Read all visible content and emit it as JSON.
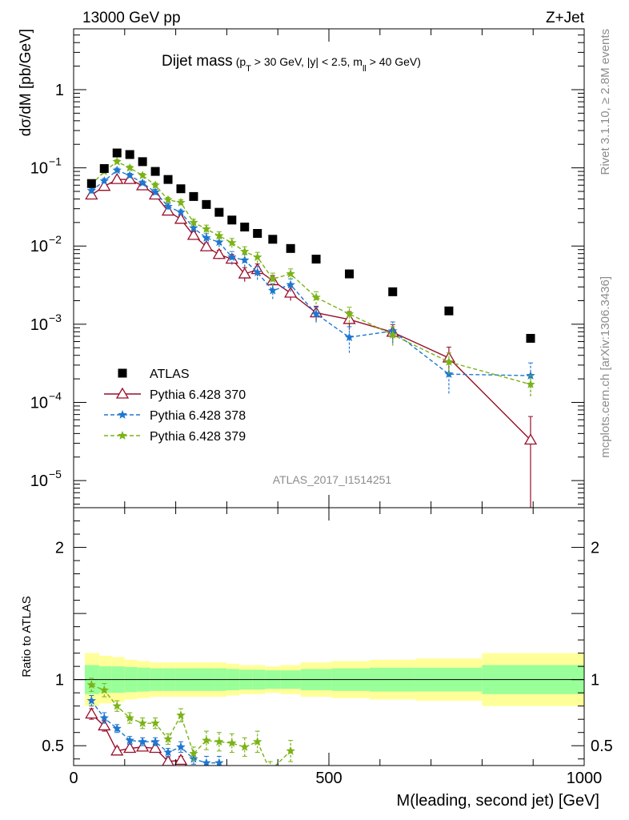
{
  "header": {
    "left": "13000 GeV pp",
    "right": "Z+Jet"
  },
  "side_labels": {
    "rivet": "Rivet 3.1.10, ≥ 2.8M events",
    "mcplots": "mcplots.cern.ch [arXiv:1306.3436]"
  },
  "chart_data": [
    {
      "type": "scatter",
      "title_main": "Dijet mass",
      "title_cuts": [
        "(p",
        "T",
        " > 30 GeV, |y| < 2.5, m",
        "ll",
        " > 40 GeV)"
      ],
      "ylabel": "dσ/dM [pb/GeV]",
      "yscale": "log",
      "ylim": [
        4.5e-06,
        6
      ],
      "xlim": [
        0,
        1000
      ],
      "y_ticks": [
        {
          "v": 1,
          "label": "1"
        },
        {
          "v": 0.1,
          "base": "10",
          "exp": "−1"
        },
        {
          "v": 0.01,
          "base": "10",
          "exp": "−2"
        },
        {
          "v": 0.001,
          "base": "10",
          "exp": "−3"
        },
        {
          "v": 0.0001,
          "base": "10",
          "exp": "−4"
        },
        {
          "v": 1e-05,
          "base": "10",
          "exp": "−5"
        }
      ],
      "analysis_label": "ATLAS_2017_I1514251",
      "legend_position": "bottom-left",
      "series": [
        {
          "name": "ATLAS",
          "color": "#000000",
          "marker": "square",
          "x": [
            35,
            60,
            85,
            110,
            135,
            160,
            185,
            210,
            235,
            260,
            285,
            310,
            335,
            360,
            390,
            425,
            475,
            540,
            625,
            735,
            895
          ],
          "y": [
            0.063,
            0.098,
            0.155,
            0.148,
            0.12,
            0.09,
            0.071,
            0.054,
            0.043,
            0.034,
            0.027,
            0.0215,
            0.0175,
            0.0145,
            0.0122,
            0.0093,
            0.0068,
            0.0044,
            0.0026,
            0.00148,
            0.00066
          ]
        },
        {
          "name": "Pythia 6.428 370",
          "color": "#9a0e2a",
          "marker": "triangle-open",
          "line": "solid",
          "x": [
            35,
            60,
            85,
            110,
            135,
            160,
            185,
            210,
            235,
            260,
            285,
            310,
            335,
            360,
            390,
            425,
            475,
            540,
            625,
            735,
            895
          ],
          "y": [
            0.045,
            0.058,
            0.071,
            0.071,
            0.059,
            0.045,
            0.028,
            0.022,
            0.0137,
            0.0098,
            0.0078,
            0.0068,
            0.0044,
            0.005,
            0.0036,
            0.0025,
            0.0014,
            0.00115,
            0.00079,
            0.00037,
            3.3e-05
          ],
          "yerr": [
            0.004,
            0.004,
            0.005,
            0.005,
            0.004,
            0.003,
            0.002,
            0.002,
            0.0015,
            0.0012,
            0.001,
            0.001,
            0.0009,
            0.0009,
            0.0006,
            0.0005,
            0.0003,
            0.0003,
            0.0002,
            0.00014,
            3.3e-05
          ]
        },
        {
          "name": "Pythia 6.428 378",
          "color": "#1f77d0",
          "marker": "star",
          "line": "dashed",
          "x": [
            35,
            60,
            85,
            110,
            135,
            160,
            185,
            210,
            235,
            260,
            285,
            310,
            335,
            360,
            390,
            425,
            475,
            540,
            625,
            735,
            895
          ],
          "y": [
            0.051,
            0.068,
            0.093,
            0.08,
            0.064,
            0.049,
            0.032,
            0.027,
            0.017,
            0.0127,
            0.0112,
            0.0072,
            0.0066,
            0.0046,
            0.0027,
            0.0032,
            0.00135,
            0.00068,
            0.00082,
            0.00023,
            0.00022
          ],
          "yerr": [
            0.004,
            0.005,
            0.006,
            0.005,
            0.004,
            0.004,
            0.003,
            0.002,
            0.002,
            0.0017,
            0.0015,
            0.0013,
            0.0012,
            0.0009,
            0.0006,
            0.0006,
            0.0003,
            0.00025,
            0.00025,
            0.0001,
            0.0001
          ]
        },
        {
          "name": "Pythia 6.428 379",
          "color": "#7ab317",
          "marker": "star",
          "line": "dashed",
          "x": [
            35,
            60,
            85,
            110,
            135,
            160,
            185,
            210,
            235,
            260,
            285,
            310,
            335,
            360,
            390,
            425,
            475,
            540,
            625,
            735,
            895
          ],
          "y": [
            0.061,
            0.09,
            0.12,
            0.1,
            0.08,
            0.06,
            0.039,
            0.036,
            0.02,
            0.0165,
            0.0135,
            0.011,
            0.0085,
            0.0072,
            0.0038,
            0.0044,
            0.0022,
            0.00135,
            0.00073,
            0.00033,
            0.00017
          ],
          "yerr": [
            0.005,
            0.006,
            0.007,
            0.006,
            0.005,
            0.004,
            0.003,
            0.003,
            0.002,
            0.002,
            0.0017,
            0.0015,
            0.0013,
            0.0011,
            0.0007,
            0.0007,
            0.0004,
            0.0003,
            0.0002,
            0.0001,
            5e-05
          ]
        }
      ]
    },
    {
      "type": "scatter",
      "ylabel": "Ratio to ATLAS",
      "xlabel": "M(leading, second jet) [GeV]",
      "xlim": [
        0,
        1000
      ],
      "ylim": [
        0.35,
        2.3
      ],
      "x_ticks": [
        {
          "v": 0,
          "label": "0"
        },
        {
          "v": 500,
          "label": "500"
        },
        {
          "v": 1000,
          "label": "1000"
        }
      ],
      "y_ticks": [
        {
          "v": 0.5,
          "label": "0.5"
        },
        {
          "v": 1,
          "label": "1"
        },
        {
          "v": 2,
          "label": "2"
        }
      ],
      "reference_line": 1,
      "uncertainty_bands": {
        "inner_color": "#99ff99",
        "outer_color": "#ffff99",
        "edges": [
          22,
          50,
          75,
          100,
          125,
          150,
          175,
          200,
          225,
          250,
          275,
          300,
          325,
          350,
          375,
          405,
          445,
          505,
          580,
          670,
          800,
          1000
        ],
        "inner_half_width": [
          0.11,
          0.1,
          0.1,
          0.095,
          0.09,
          0.085,
          0.085,
          0.085,
          0.085,
          0.085,
          0.085,
          0.08,
          0.075,
          0.075,
          0.07,
          0.07,
          0.08,
          0.085,
          0.09,
          0.09,
          0.11
        ],
        "outer_half_width": [
          0.2,
          0.18,
          0.17,
          0.15,
          0.14,
          0.13,
          0.13,
          0.13,
          0.13,
          0.13,
          0.13,
          0.12,
          0.11,
          0.11,
          0.1,
          0.11,
          0.13,
          0.14,
          0.15,
          0.16,
          0.2
        ]
      },
      "series": [
        {
          "name": "Pythia 6.428 370",
          "x": [
            35,
            60,
            85,
            110,
            135,
            160,
            185,
            210,
            235
          ],
          "y": [
            0.74,
            0.65,
            0.46,
            0.48,
            0.49,
            0.48,
            0.38,
            0.39,
            0.3
          ],
          "yerr": [
            0.04,
            0.04,
            0.03,
            0.03,
            0.03,
            0.03,
            0.03,
            0.03,
            0.03
          ]
        },
        {
          "name": "Pythia 6.428 378",
          "x": [
            35,
            60,
            85,
            110,
            135,
            160,
            185,
            210,
            235,
            260,
            285
          ],
          "y": [
            0.84,
            0.71,
            0.63,
            0.54,
            0.53,
            0.53,
            0.45,
            0.49,
            0.4,
            0.37,
            0.37
          ],
          "yerr": [
            0.04,
            0.04,
            0.03,
            0.03,
            0.03,
            0.03,
            0.03,
            0.04,
            0.04,
            0.05,
            0.05
          ]
        },
        {
          "name": "Pythia 6.428 379",
          "x": [
            35,
            60,
            85,
            110,
            135,
            160,
            185,
            210,
            235,
            260,
            285,
            310,
            335,
            360,
            385,
            425
          ],
          "y": [
            0.96,
            0.92,
            0.8,
            0.71,
            0.67,
            0.67,
            0.55,
            0.73,
            0.44,
            0.54,
            0.53,
            0.52,
            0.49,
            0.53,
            0.31,
            0.46
          ],
          "yerr": [
            0.05,
            0.05,
            0.04,
            0.04,
            0.04,
            0.04,
            0.04,
            0.05,
            0.05,
            0.07,
            0.07,
            0.07,
            0.07,
            0.08,
            0.07,
            0.08
          ]
        }
      ]
    }
  ]
}
